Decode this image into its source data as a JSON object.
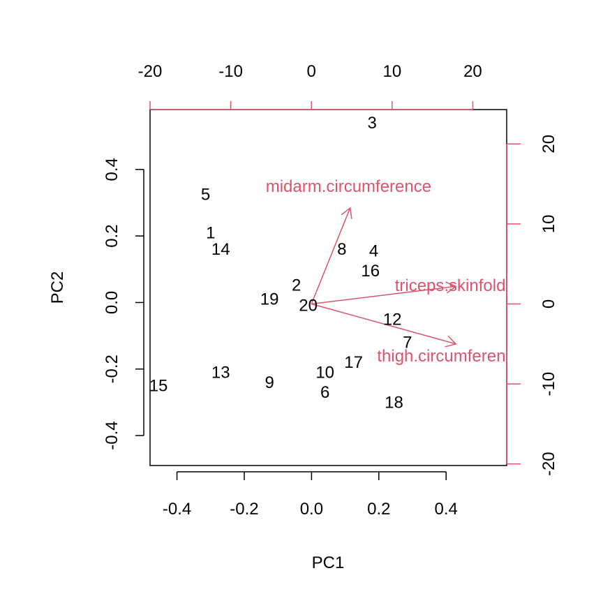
{
  "chart_data": {
    "type": "biplot",
    "title": "",
    "xlabel": "PC1",
    "ylabel": "PC2",
    "xlim": [
      -0.48,
      0.58
    ],
    "ylim": [
      -0.49,
      0.58
    ],
    "x_ticks": [
      "-0.4",
      "-0.2",
      "0.0",
      "0.2",
      "0.4"
    ],
    "y_ticks": [
      "-0.4",
      "-0.2",
      "0.0",
      "0.2",
      "0.4"
    ],
    "top_axis_ticks": [
      "-20",
      "-10",
      "0",
      "10",
      "20"
    ],
    "right_axis_ticks": [
      "-20",
      "-10",
      "0",
      "10",
      "20"
    ],
    "secondary_xlim": [
      -20.0,
      24.2
    ],
    "secondary_ylim": [
      -20.2,
      24.3
    ],
    "points": [
      {
        "label": "1",
        "x": -0.3,
        "y": 0.21
      },
      {
        "label": "2",
        "x": -0.045,
        "y": 0.052
      },
      {
        "label": "3",
        "x": 0.18,
        "y": 0.54
      },
      {
        "label": "4",
        "x": 0.185,
        "y": 0.155
      },
      {
        "label": "5",
        "x": -0.315,
        "y": 0.325
      },
      {
        "label": "6",
        "x": 0.04,
        "y": -0.27
      },
      {
        "label": "7",
        "x": 0.285,
        "y": -0.12
      },
      {
        "label": "8",
        "x": 0.09,
        "y": 0.16
      },
      {
        "label": "9",
        "x": -0.125,
        "y": -0.24
      },
      {
        "label": "10",
        "x": 0.04,
        "y": -0.21
      },
      {
        "label": "12",
        "x": 0.24,
        "y": -0.05
      },
      {
        "label": "13",
        "x": -0.27,
        "y": -0.21
      },
      {
        "label": "14",
        "x": -0.27,
        "y": 0.16
      },
      {
        "label": "15",
        "x": -0.455,
        "y": -0.25
      },
      {
        "label": "16",
        "x": 0.175,
        "y": 0.095
      },
      {
        "label": "17",
        "x": 0.125,
        "y": -0.18
      },
      {
        "label": "18",
        "x": 0.245,
        "y": -0.3
      },
      {
        "label": "19",
        "x": -0.125,
        "y": 0.01
      },
      {
        "label": "20",
        "x": -0.01,
        "y": -0.008
      }
    ],
    "variables": [
      {
        "name": "midarm.circumference",
        "x": 4.8,
        "y": 12.0,
        "label_x": 4.6,
        "label_y": 14.7
      },
      {
        "name": "triceps.skinfold",
        "x": 17.9,
        "y": 2.2,
        "label_x": 17.2,
        "label_y": 2.3
      },
      {
        "name": "thigh.circumference",
        "x": 17.9,
        "y": -5.0,
        "label_x": 17.2,
        "label_y": -6.5
      }
    ],
    "colors": {
      "points": "#000000",
      "arrows": "#df536b",
      "axes": "#000000"
    }
  }
}
